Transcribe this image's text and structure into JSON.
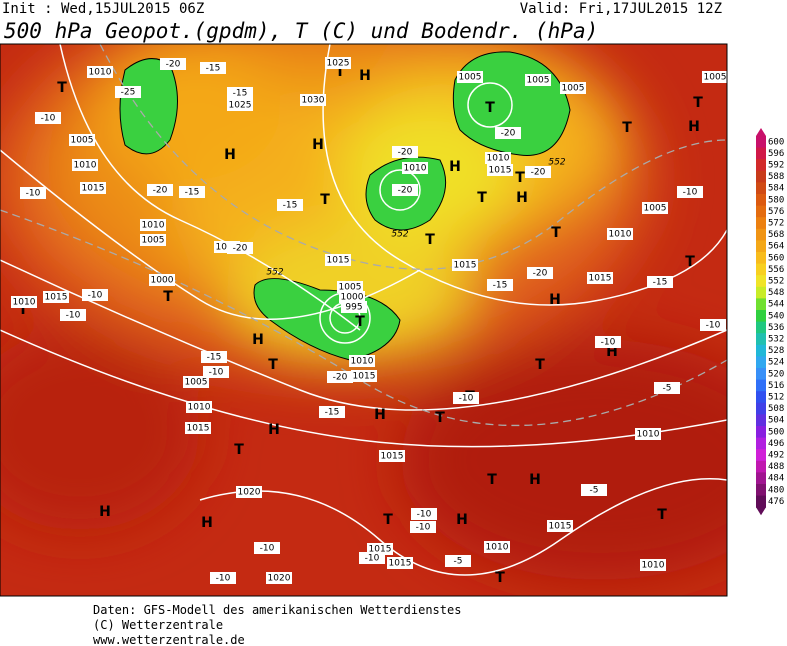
{
  "header": {
    "init": "Init : Wed,15JUL2015 06Z",
    "valid": "Valid: Fri,17JUL2015 12Z",
    "title": "500 hPa Geopot.(gpdm), T (C) und Bodendr. (hPa)"
  },
  "colorbar": {
    "ticks": [
      600,
      596,
      592,
      588,
      584,
      580,
      576,
      572,
      568,
      564,
      560,
      556,
      552,
      548,
      544,
      540,
      536,
      532,
      528,
      524,
      520,
      516,
      512,
      508,
      504,
      500,
      496,
      492,
      488,
      484,
      480,
      476
    ],
    "colors": [
      "#c8106a",
      "#d01848",
      "#d22a2a",
      "#c83a1a",
      "#d04a14",
      "#dc5a10",
      "#e46c10",
      "#ec8010",
      "#f09414",
      "#f4a818",
      "#f8bc1c",
      "#f8d020",
      "#f0e428",
      "#c8ec28",
      "#70e030",
      "#30d040",
      "#20c880",
      "#20c0b0",
      "#20b8d8",
      "#30a8f0",
      "#3890f8",
      "#3070f8",
      "#3050f0",
      "#4040e8",
      "#6030e0",
      "#8820e0",
      "#b020e0",
      "#d020d8",
      "#c018b0",
      "#a01490",
      "#801070",
      "#600c58"
    ]
  },
  "map_labels": [
    "T",
    "H",
    "T",
    "H",
    "H",
    "T",
    "T",
    "H",
    "T",
    "T",
    "H",
    "H",
    "T",
    "T",
    "H",
    "H",
    "T",
    "H",
    "T",
    "T",
    "T",
    "H",
    "T",
    "T",
    "H",
    "T",
    "H",
    "T",
    "T",
    "H",
    "T",
    "H",
    "T",
    "T",
    "H",
    "T",
    "T",
    "T",
    "T",
    "1010",
    "1010",
    "1015",
    "1005",
    "1020",
    "1025",
    "1030",
    "1025",
    "1005",
    "1005",
    "1005",
    "1010",
    "1010",
    "1015",
    "1005",
    "1010",
    "1015",
    "1015",
    "1015",
    "1000",
    "1005",
    "1010",
    "1015",
    "1010",
    "1005",
    "1010",
    "1015",
    "1020",
    "1020",
    "1015",
    "1015",
    "1015",
    "1010",
    "1015",
    "1010",
    "1010",
    "1005",
    "1005",
    "1000",
    "995",
    "1010",
    "1015",
    "-20",
    "-25",
    "-15",
    "-15",
    "-10",
    "-10",
    "-20",
    "-15",
    "-15",
    "-20",
    "-20",
    "-20",
    "-20",
    "-20",
    "-15",
    "-20",
    "-15",
    "-10",
    "-10",
    "-10",
    "-10",
    "-10",
    "-15",
    "-10",
    "-20",
    "-15",
    "-10",
    "-5",
    "-10",
    "-10",
    "-10",
    "-10",
    "-5",
    "-5",
    "-10",
    "552",
    "552",
    "552"
  ],
  "footer": [
    "Daten: GFS-Modell des amerikanischen Wetterdienstes",
    "(C) Wetterzentrale",
    "www.wetterzentrale.de"
  ]
}
